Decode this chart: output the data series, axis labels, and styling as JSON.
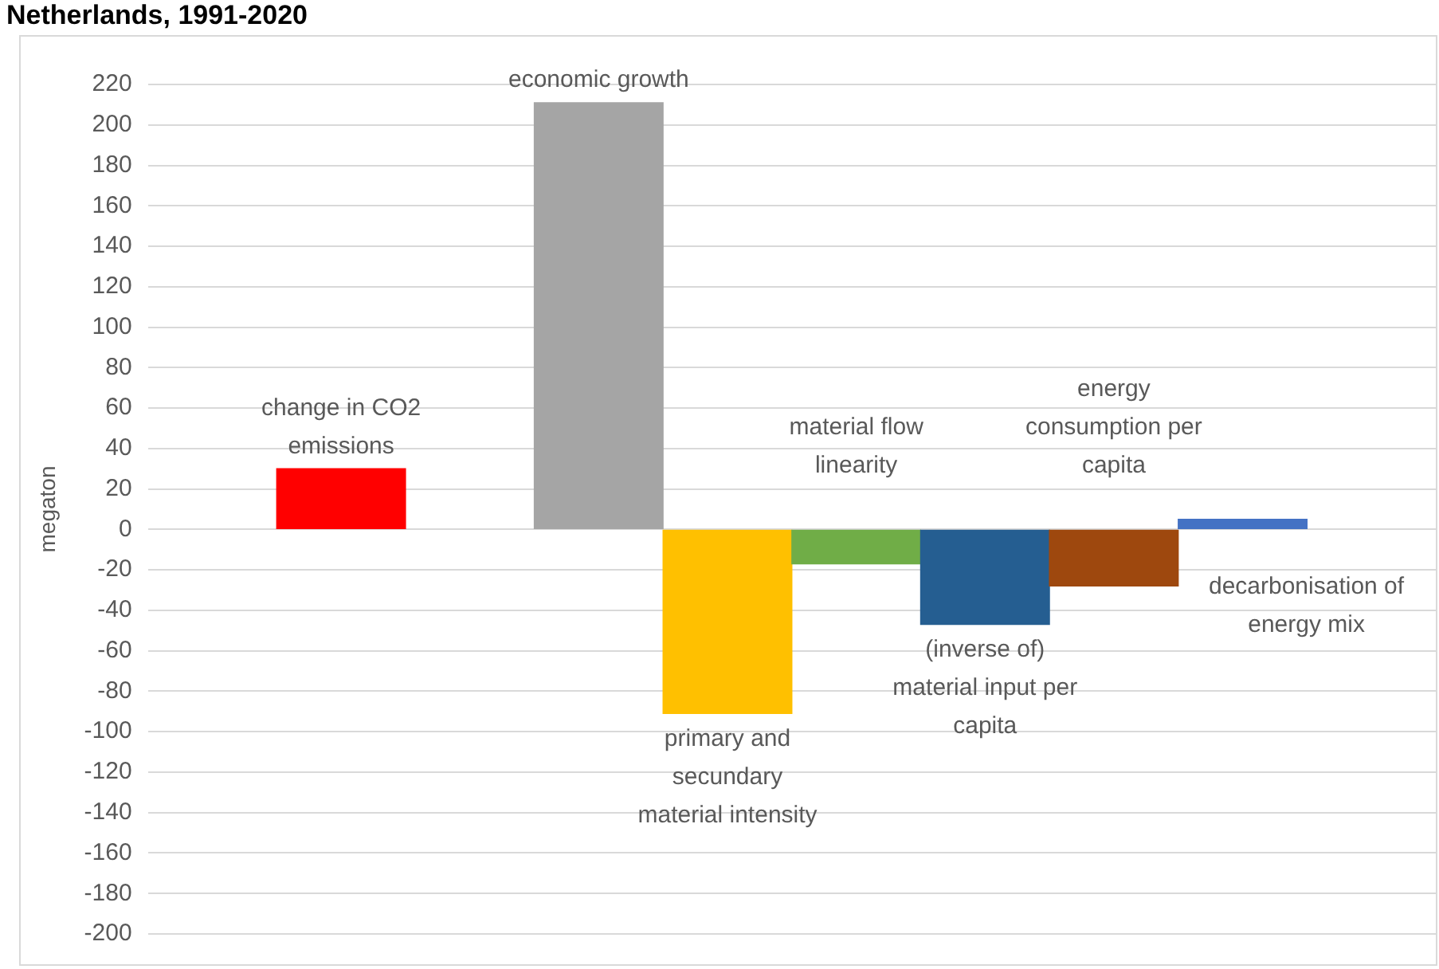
{
  "chart_data": {
    "type": "bar",
    "title": "Netherlands, 1991-2020",
    "ylabel": "megaton",
    "categories": [
      null,
      "change in CO2 emissions",
      null,
      "economic growth",
      "primary and secundary material intensity",
      "material flow linearity",
      "(inverse of) material input per capita",
      "energy consumption per capita",
      "decarbonisation of energy mix",
      null
    ],
    "values": [
      null,
      30,
      null,
      211,
      -91,
      -17,
      -47,
      -28,
      5,
      null
    ],
    "colors": [
      "#ffffff",
      "#ff0000",
      "#ffffff",
      "#a5a5a5",
      "#ffc000",
      "#70ad47",
      "#255e91",
      "#9e480e",
      "#4472c4",
      "#ffffff"
    ],
    "ylim": [
      -200,
      220
    ],
    "yticks": [
      -200,
      -180,
      -160,
      -140,
      -120,
      -100,
      -80,
      -60,
      -40,
      -20,
      0,
      20,
      40,
      60,
      80,
      100,
      120,
      140,
      160,
      180,
      200,
      220
    ],
    "grid": "y",
    "legend": false
  }
}
